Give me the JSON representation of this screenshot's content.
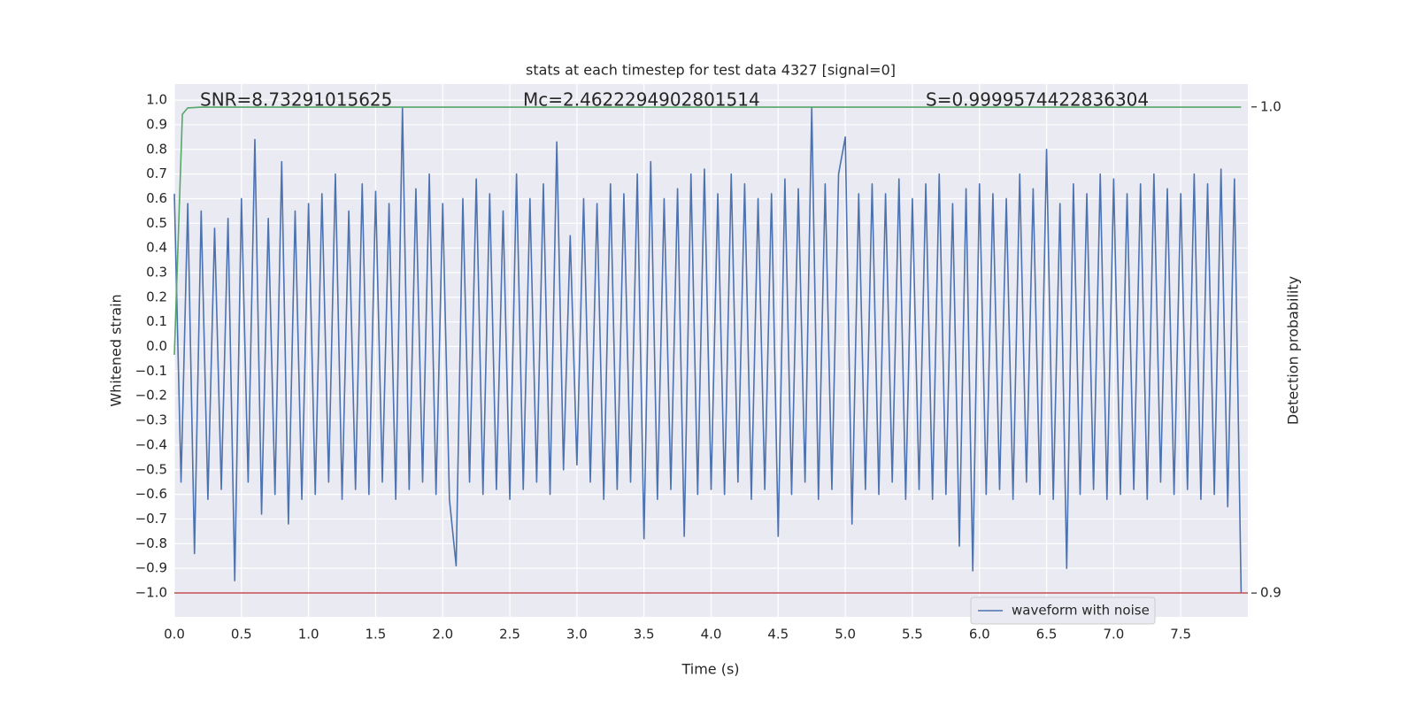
{
  "chart_data": {
    "type": "line",
    "title": "stats at each timestep for test data 4327 [signal=0]",
    "x_label": "Time (s)",
    "y_label": "Whitened strain",
    "y2_label": "Detection probability",
    "annotations": [
      "SNR=8.73291015625",
      "Mc=2.4622294902801514",
      "S=0.9999574422836304"
    ],
    "xlim": [
      0,
      8
    ],
    "ylim": [
      -1.097,
      1.065
    ],
    "y2lim": [
      0.8951,
      1.0047
    ],
    "xticks": [
      {
        "value": 0,
        "label": "0.0"
      },
      {
        "value": 0.5,
        "label": "0.5"
      },
      {
        "value": 1,
        "label": "1.0"
      },
      {
        "value": 1.5,
        "label": "1.5"
      },
      {
        "value": 2,
        "label": "2.0"
      },
      {
        "value": 2.5,
        "label": "2.5"
      },
      {
        "value": 3,
        "label": "3.0"
      },
      {
        "value": 3.5,
        "label": "3.5"
      },
      {
        "value": 4,
        "label": "4.0"
      },
      {
        "value": 4.5,
        "label": "4.5"
      },
      {
        "value": 5,
        "label": "5.0"
      },
      {
        "value": 5.5,
        "label": "5.5"
      },
      {
        "value": 6,
        "label": "6.0"
      },
      {
        "value": 6.5,
        "label": "6.5"
      },
      {
        "value": 7,
        "label": "7.0"
      },
      {
        "value": 7.5,
        "label": "7.5"
      }
    ],
    "yticks": [
      {
        "value": 1,
        "label": "1.0"
      },
      {
        "value": 0.9,
        "label": "0.9"
      },
      {
        "value": 0.8,
        "label": "0.8"
      },
      {
        "value": 0.7,
        "label": "0.7"
      },
      {
        "value": 0.6,
        "label": "0.6"
      },
      {
        "value": 0.5,
        "label": "0.5"
      },
      {
        "value": 0.4,
        "label": "0.4"
      },
      {
        "value": 0.3,
        "label": "0.3"
      },
      {
        "value": 0.2,
        "label": "0.2"
      },
      {
        "value": 0.1,
        "label": "0.1"
      },
      {
        "value": 0,
        "label": "0.0"
      },
      {
        "value": -0.1,
        "label": "−0.1"
      },
      {
        "value": -0.2,
        "label": "−0.2"
      },
      {
        "value": -0.3,
        "label": "−0.3"
      },
      {
        "value": -0.4,
        "label": "−0.4"
      },
      {
        "value": -0.5,
        "label": "−0.5"
      },
      {
        "value": -0.6,
        "label": "−0.6"
      },
      {
        "value": -0.7,
        "label": "−0.7"
      },
      {
        "value": -0.8,
        "label": "−0.8"
      },
      {
        "value": -0.9,
        "label": "−0.9"
      },
      {
        "value": -1,
        "label": "−1.0"
      }
    ],
    "y2ticks": [
      {
        "value": 1,
        "label": "1.0"
      },
      {
        "value": 0.9,
        "label": "0.9"
      }
    ],
    "grid": true,
    "legend": "lower right",
    "series": [
      {
        "name": "waveform with noise",
        "color": "#4c72b0",
        "x": [
          0,
          0.05,
          0.1,
          0.15,
          0.2,
          0.25,
          0.3,
          0.35,
          0.4,
          0.45,
          0.5,
          0.55,
          0.6,
          0.65,
          0.7,
          0.75,
          0.8,
          0.85,
          0.9,
          0.95,
          1,
          1.05,
          1.1,
          1.15,
          1.2,
          1.25,
          1.3,
          1.35,
          1.4,
          1.45,
          1.5,
          1.55,
          1.6,
          1.65,
          1.7,
          1.75,
          1.8,
          1.85,
          1.9,
          1.95,
          2,
          2.05,
          2.1,
          2.15,
          2.2,
          2.25,
          2.3,
          2.35,
          2.4,
          2.45,
          2.5,
          2.55,
          2.6,
          2.65,
          2.7,
          2.75,
          2.8,
          2.85,
          2.9,
          2.95,
          3,
          3.05,
          3.1,
          3.15,
          3.2,
          3.25,
          3.3,
          3.35,
          3.4,
          3.45,
          3.5,
          3.55,
          3.6,
          3.65,
          3.7,
          3.75,
          3.8,
          3.85,
          3.9,
          3.95,
          4,
          4.05,
          4.1,
          4.15,
          4.2,
          4.25,
          4.3,
          4.35,
          4.4,
          4.45,
          4.5,
          4.55,
          4.6,
          4.65,
          4.7,
          4.75,
          4.8,
          4.85,
          4.9,
          4.95,
          5,
          5.05,
          5.1,
          5.15,
          5.2,
          5.25,
          5.3,
          5.35,
          5.4,
          5.45,
          5.5,
          5.55,
          5.6,
          5.65,
          5.7,
          5.75,
          5.8,
          5.85,
          5.9,
          5.95,
          6,
          6.05,
          6.1,
          6.15,
          6.2,
          6.25,
          6.3,
          6.35,
          6.4,
          6.45,
          6.5,
          6.55,
          6.6,
          6.65,
          6.7,
          6.75,
          6.8,
          6.85,
          6.9,
          6.95,
          7,
          7.05,
          7.1,
          7.15,
          7.2,
          7.25,
          7.3,
          7.35,
          7.4,
          7.45,
          7.5,
          7.55,
          7.6,
          7.65,
          7.7,
          7.75,
          7.8,
          7.85,
          7.9,
          7.95
        ],
        "values": [
          0.62,
          -0.55,
          0.58,
          -0.84,
          0.55,
          -0.62,
          0.48,
          -0.58,
          0.52,
          -0.95,
          0.6,
          -0.55,
          0.84,
          -0.68,
          0.52,
          -0.6,
          0.75,
          -0.72,
          0.55,
          -0.62,
          0.58,
          -0.6,
          0.62,
          -0.55,
          0.7,
          -0.62,
          0.55,
          -0.58,
          0.66,
          -0.6,
          0.63,
          -0.55,
          0.58,
          -0.62,
          0.97,
          -0.58,
          0.64,
          -0.55,
          0.7,
          -0.6,
          0.58,
          -0.62,
          -0.89,
          0.6,
          -0.55,
          0.68,
          -0.6,
          0.62,
          -0.58,
          0.55,
          -0.62,
          0.7,
          -0.58,
          0.6,
          -0.55,
          0.66,
          -0.6,
          0.83,
          -0.5,
          0.45,
          -0.48,
          0.6,
          -0.55,
          0.58,
          -0.62,
          0.66,
          -0.58,
          0.62,
          -0.55,
          0.7,
          -0.78,
          0.75,
          -0.62,
          0.6,
          -0.58,
          0.64,
          -0.77,
          0.7,
          -0.6,
          0.72,
          -0.58,
          0.62,
          -0.6,
          0.7,
          -0.55,
          0.66,
          -0.62,
          0.6,
          -0.58,
          0.62,
          -0.77,
          0.68,
          -0.6,
          0.64,
          -0.55,
          0.97,
          -0.62,
          0.66,
          -0.58,
          0.7,
          0.85,
          -0.72,
          0.62,
          -0.58,
          0.66,
          -0.6,
          0.62,
          -0.55,
          0.68,
          -0.62,
          0.6,
          -0.58,
          0.66,
          -0.62,
          0.7,
          -0.6,
          0.58,
          -0.81,
          0.64,
          -0.91,
          0.66,
          -0.6,
          0.62,
          -0.58,
          0.6,
          -0.62,
          0.7,
          -0.55,
          0.64,
          -0.6,
          0.8,
          -0.62,
          0.58,
          -0.9,
          0.66,
          -0.6,
          0.62,
          -0.58,
          0.7,
          -0.62,
          0.68,
          -0.6,
          0.62,
          -0.58,
          0.66,
          -0.62,
          0.7,
          -0.55,
          0.64,
          -0.6,
          0.62,
          -0.58,
          0.7,
          -0.62,
          0.66,
          -0.6,
          0.72,
          -0.65,
          0.68,
          -1.0
        ]
      },
      {
        "color": "#55a868",
        "axis": "y2",
        "x": [
          0,
          0.06,
          0.1,
          0.2,
          7.95
        ],
        "values": [
          0.949,
          0.9985,
          0.9998,
          0.99996,
          0.99996
        ]
      },
      {
        "color": "#c44e52",
        "x": [
          0,
          8
        ],
        "values": [
          -1,
          -1
        ]
      }
    ]
  }
}
